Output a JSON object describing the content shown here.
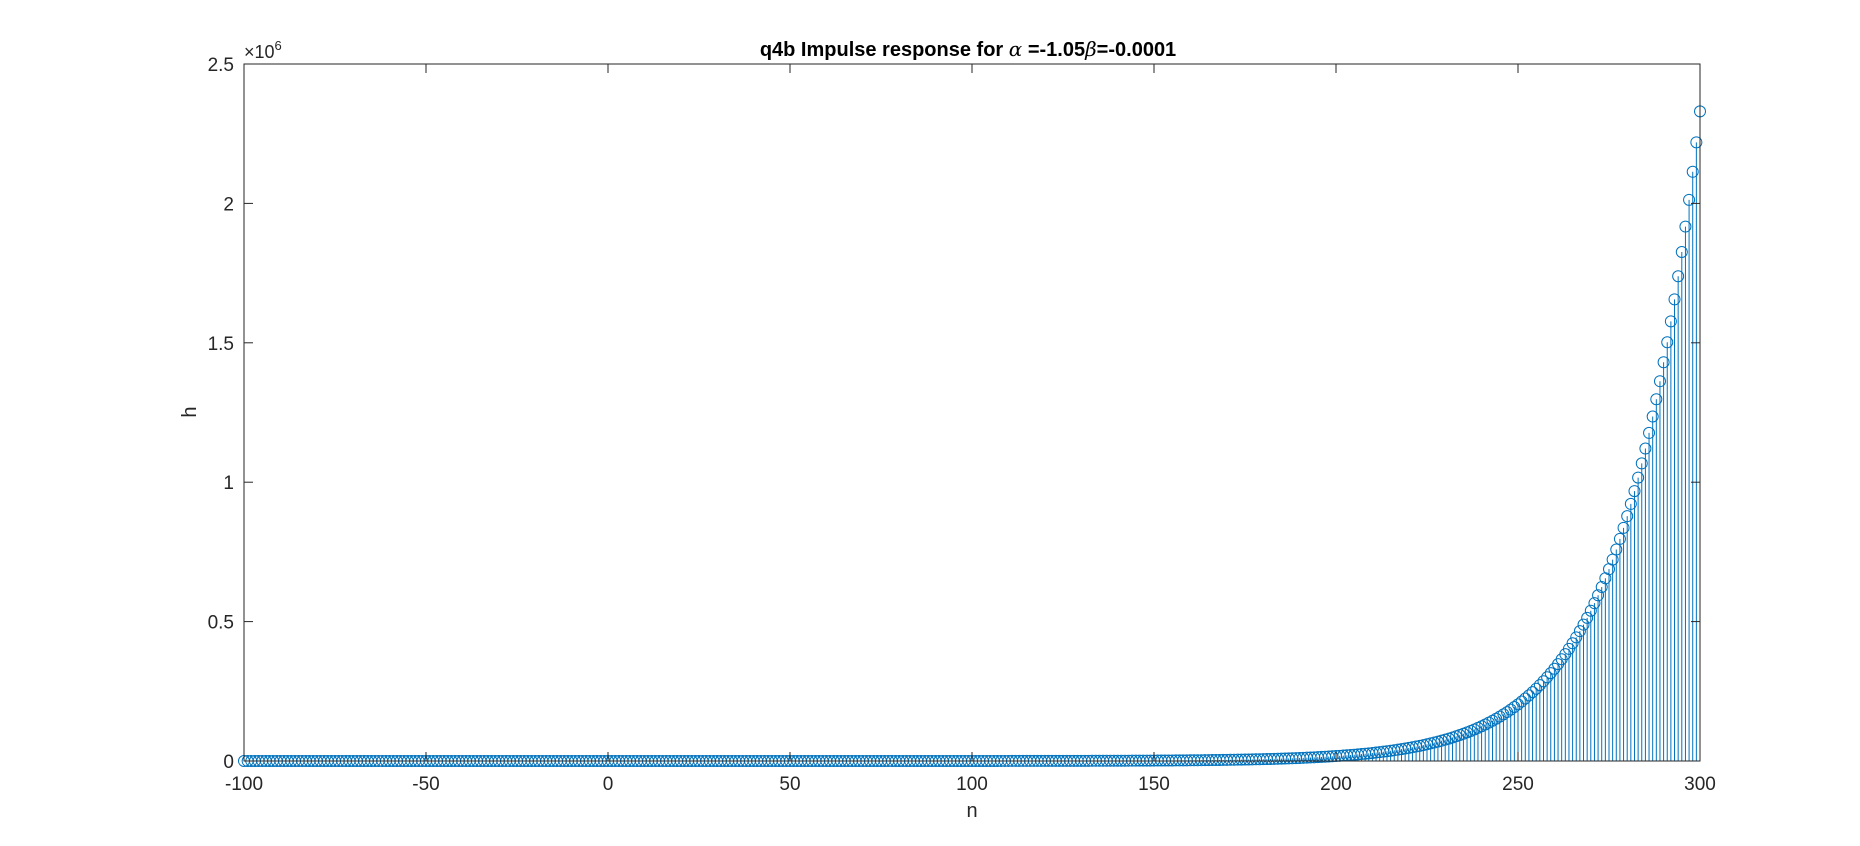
{
  "chart_data": {
    "type": "stem",
    "title_parts": [
      "q4b Impulse response for ",
      "α",
      " =-1.05",
      "β",
      "=-0.0001"
    ],
    "xlabel": "n",
    "ylabel": "h",
    "xlim": [
      -100,
      300
    ],
    "ylim": [
      0,
      2500000
    ],
    "x_ticks": [
      -100,
      -50,
      0,
      50,
      100,
      150,
      200,
      250,
      300
    ],
    "x_tick_labels": [
      "-100",
      "-50",
      "0",
      "50",
      "100",
      "150",
      "200",
      "250",
      "300"
    ],
    "y_ticks": [
      0,
      500000,
      1000000,
      1500000,
      2000000,
      2500000
    ],
    "y_tick_labels": [
      "0",
      "0.5",
      "1",
      "1.5",
      "2",
      "2.5"
    ],
    "y_exponent_base": "×10",
    "y_exponent_power": "6",
    "grid": false,
    "alpha": -1.05,
    "beta": -0.0001,
    "series_color": "#0072BD",
    "n_start": -100,
    "n_end": 300,
    "h_at_300": 2330000
  }
}
